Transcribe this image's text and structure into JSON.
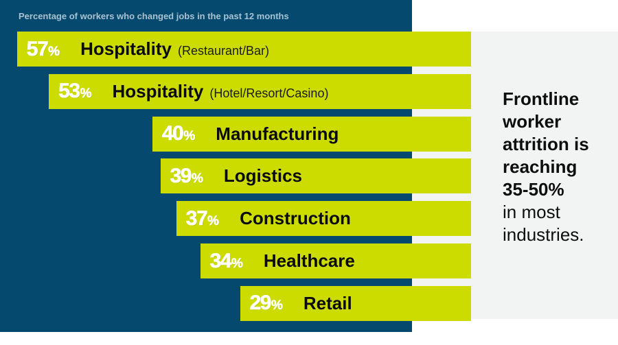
{
  "colors": {
    "panel": "#054a6e",
    "bar": "#cddc00",
    "right_panel": "#f2f3f3"
  },
  "chart_data": {
    "type": "bar",
    "orientation": "horizontal",
    "title": "Percentage of workers who changed jobs in the past 12 months",
    "categories": [
      "Hospitality (Restaurant/Bar)",
      "Hospitality (Hotel/Resort/Casino)",
      "Manufacturing",
      "Logistics",
      "Construction",
      "Healthcare",
      "Retail"
    ],
    "values": [
      57,
      53,
      40,
      39,
      37,
      34,
      29
    ],
    "unit": "%",
    "bars": [
      {
        "value": 57,
        "num": "57",
        "sign": "%",
        "label": "Hospitality",
        "note": "(Restaurant/Bar)"
      },
      {
        "value": 53,
        "num": "53",
        "sign": "%",
        "label": "Hospitality",
        "note": "(Hotel/Resort/Casino)"
      },
      {
        "value": 40,
        "num": "40",
        "sign": "%",
        "label": "Manufacturing",
        "note": ""
      },
      {
        "value": 39,
        "num": "39",
        "sign": "%",
        "label": "Logistics",
        "note": ""
      },
      {
        "value": 37,
        "num": "37",
        "sign": "%",
        "label": "Construction",
        "note": ""
      },
      {
        "value": 34,
        "num": "34",
        "sign": "%",
        "label": "Healthcare",
        "note": ""
      },
      {
        "value": 29,
        "num": "29",
        "sign": "%",
        "label": "Retail",
        "note": ""
      }
    ]
  },
  "callout": {
    "strong_lines": [
      "Frontline",
      "worker",
      "attrition is",
      "reaching",
      "35-50%"
    ],
    "soft_lines": [
      "in most",
      "industries."
    ]
  }
}
